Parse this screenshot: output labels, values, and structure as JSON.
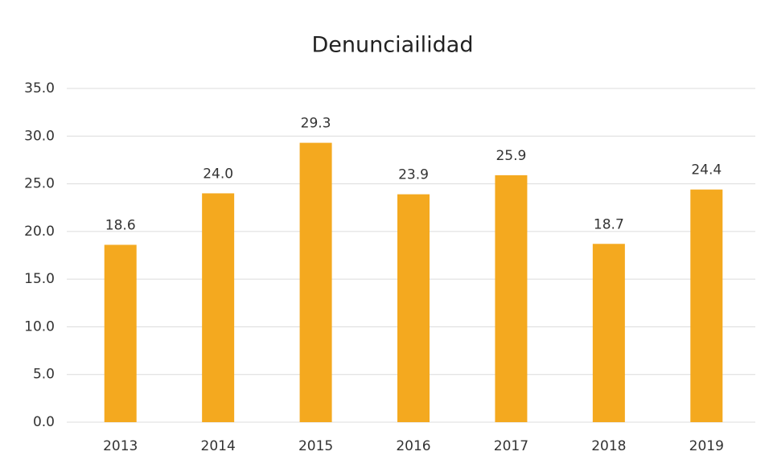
{
  "chart_data": {
    "type": "bar",
    "title": "Denunciailidad",
    "categories": [
      "2013",
      "2014",
      "2015",
      "2016",
      "2017",
      "2018",
      "2019"
    ],
    "values": [
      18.6,
      24.0,
      29.3,
      23.9,
      25.9,
      18.7,
      24.4
    ],
    "value_labels": [
      "18.6",
      "24.0",
      "29.3",
      "23.9",
      "25.9",
      "18.7",
      "24.4"
    ],
    "color": "#f4a91f",
    "ylim": [
      0,
      35
    ],
    "yticks": [
      {
        "value": 0,
        "label": "0.0"
      },
      {
        "value": 5,
        "label": "5.0"
      },
      {
        "value": 10,
        "label": "10.0"
      },
      {
        "value": 15,
        "label": "15.0"
      },
      {
        "value": 20,
        "label": "20.0"
      },
      {
        "value": 25,
        "label": "25.0"
      },
      {
        "value": 30,
        "label": "30.0"
      },
      {
        "value": 35,
        "label": "35.0"
      }
    ],
    "grid": true
  }
}
